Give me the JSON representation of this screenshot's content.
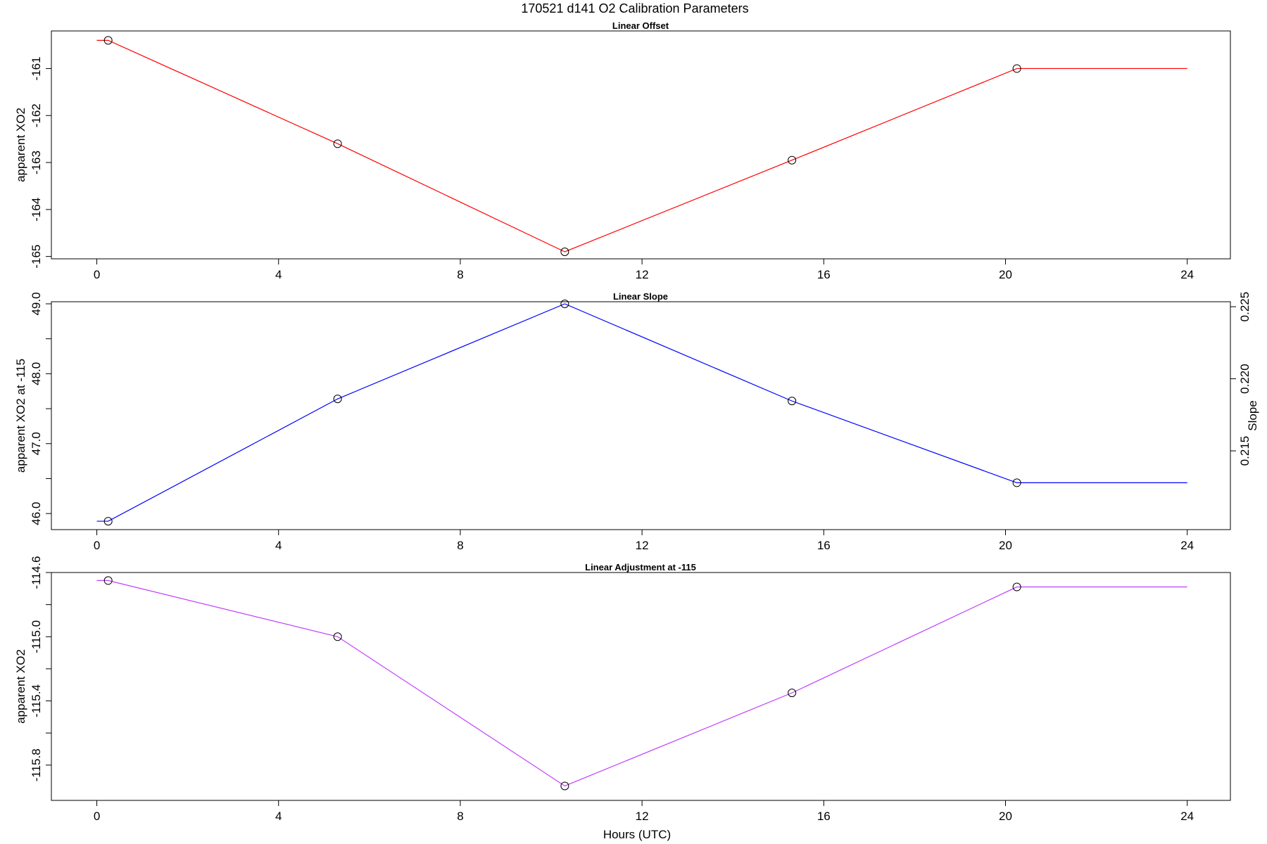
{
  "figure": {
    "title": "170521   d141   O2 Calibration Parameters",
    "xlabel": "Hours (UTC)"
  },
  "chart_data": [
    {
      "type": "line",
      "title": "Linear Offset",
      "xlabel": "",
      "ylabel": "apparent XO2",
      "xlim": [
        -1,
        24.95
      ],
      "ylim": [
        -165.05,
        -160.2
      ],
      "xticks": [
        0,
        4,
        8,
        12,
        16,
        20,
        24
      ],
      "xtick_labels": [
        "0",
        "4",
        "8",
        "12",
        "16",
        "20",
        "24"
      ],
      "yticks": [
        -161,
        -162,
        -163,
        -164,
        -165
      ],
      "ytick_labels": [
        "-161",
        "-162",
        "-163",
        "-164",
        "-165"
      ],
      "color": "#ff0000",
      "series": [
        {
          "x": [
            0.25,
            5.3,
            10.3,
            15.3,
            20.25,
            24
          ],
          "y": [
            -160.4,
            -162.6,
            -164.9,
            -162.95,
            -161.0,
            -161.0
          ],
          "markers": [
            true,
            true,
            true,
            true,
            true,
            false
          ],
          "line_start_x": 0
        }
      ]
    },
    {
      "type": "line",
      "title": "Linear Slope",
      "xlabel": "",
      "ylabel": "apparent XO2 at -115",
      "xlim": [
        -1,
        24.95
      ],
      "ylim": [
        45.77,
        49.03
      ],
      "xticks": [
        0,
        4,
        8,
        12,
        16,
        20,
        24
      ],
      "xtick_labels": [
        "0",
        "4",
        "8",
        "12",
        "16",
        "20",
        "24"
      ],
      "yticks": [
        49.0,
        48.0,
        47.0,
        46.0
      ],
      "ytick_labels": [
        "49.0",
        "48.0",
        "47.0",
        "46.0"
      ],
      "yminor": [
        48.5,
        47.5,
        46.5
      ],
      "y2label": "Slope",
      "y2ticks": [
        0.225,
        0.22,
        0.215
      ],
      "y2tick_labels": [
        "0.225",
        "0.220",
        "0.215"
      ],
      "y2_map": {
        "y": [
          46.01,
          49.0
        ],
        "y2": [
          0.2107,
          0.2252
        ]
      },
      "color": "#0000ff",
      "series": [
        {
          "x": [
            0.25,
            5.3,
            10.3,
            15.3,
            20.25,
            24
          ],
          "y": [
            45.89,
            47.64,
            49.0,
            47.61,
            46.44,
            46.44
          ],
          "markers": [
            true,
            true,
            true,
            true,
            true,
            false
          ],
          "line_start_x": 0
        }
      ]
    },
    {
      "type": "line",
      "title": "Linear Adjustment at -115",
      "xlabel": "Hours (UTC)",
      "ylabel": "apparent XO2",
      "xlim": [
        -1,
        24.95
      ],
      "ylim": [
        -116.02,
        -114.6
      ],
      "xticks": [
        0,
        4,
        8,
        12,
        16,
        20,
        24
      ],
      "xtick_labels": [
        "0",
        "4",
        "8",
        "12",
        "16",
        "20",
        "24"
      ],
      "yticks": [
        -114.6,
        -115.0,
        -115.4,
        -115.8
      ],
      "ytick_labels": [
        "-114.6",
        "-115.0",
        "-115.4",
        "-115.8"
      ],
      "yminor": [
        -114.8,
        -115.2,
        -115.6
      ],
      "color": "#bf3eff",
      "series": [
        {
          "x": [
            0.25,
            5.3,
            10.3,
            15.3,
            20.25,
            24
          ],
          "y": [
            -114.65,
            -115.0,
            -115.93,
            -115.35,
            -114.69,
            -114.69
          ],
          "markers": [
            true,
            true,
            true,
            true,
            true,
            false
          ],
          "line_start_x": 0
        }
      ]
    }
  ]
}
